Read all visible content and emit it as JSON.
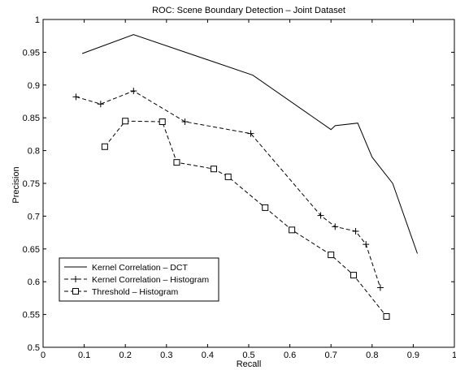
{
  "chart_data": {
    "type": "line",
    "title": "ROC: Scene Boundary Detection – Joint Dataset",
    "xlabel": "Recall",
    "ylabel": "Precision",
    "xlim": [
      0,
      1
    ],
    "ylim": [
      0.5,
      1
    ],
    "xticks": [
      "0",
      "0.1",
      "0.2",
      "0.3",
      "0.4",
      "0.5",
      "0.6",
      "0.7",
      "0.8",
      "0.9",
      "1"
    ],
    "yticks": [
      "0.5",
      "0.55",
      "0.6",
      "0.65",
      "0.7",
      "0.75",
      "0.8",
      "0.85",
      "0.9",
      "0.95",
      "1"
    ],
    "grid": false,
    "legend_position": "bottom-left",
    "series": [
      {
        "name": "Kernel Correlation – DCT",
        "style": "solid",
        "marker": "none",
        "x": [
          0.095,
          0.22,
          0.51,
          0.7,
          0.71,
          0.765,
          0.8,
          0.85,
          0.91
        ],
        "y": [
          0.948,
          0.977,
          0.915,
          0.832,
          0.838,
          0.842,
          0.79,
          0.75,
          0.643
        ]
      },
      {
        "name": "Kernel Correlation – Histogram",
        "style": "dashed",
        "marker": "plus",
        "x": [
          0.08,
          0.14,
          0.22,
          0.345,
          0.505,
          0.675,
          0.71,
          0.76,
          0.785,
          0.82
        ],
        "y": [
          0.882,
          0.871,
          0.891,
          0.844,
          0.826,
          0.701,
          0.684,
          0.677,
          0.657,
          0.591
        ]
      },
      {
        "name": "Threshold – Histogram",
        "style": "dashed",
        "marker": "square",
        "x": [
          0.15,
          0.2,
          0.29,
          0.325,
          0.415,
          0.45,
          0.54,
          0.605,
          0.7,
          0.755,
          0.835
        ],
        "y": [
          0.806,
          0.845,
          0.844,
          0.782,
          0.772,
          0.76,
          0.713,
          0.679,
          0.641,
          0.61,
          0.547
        ]
      }
    ]
  }
}
